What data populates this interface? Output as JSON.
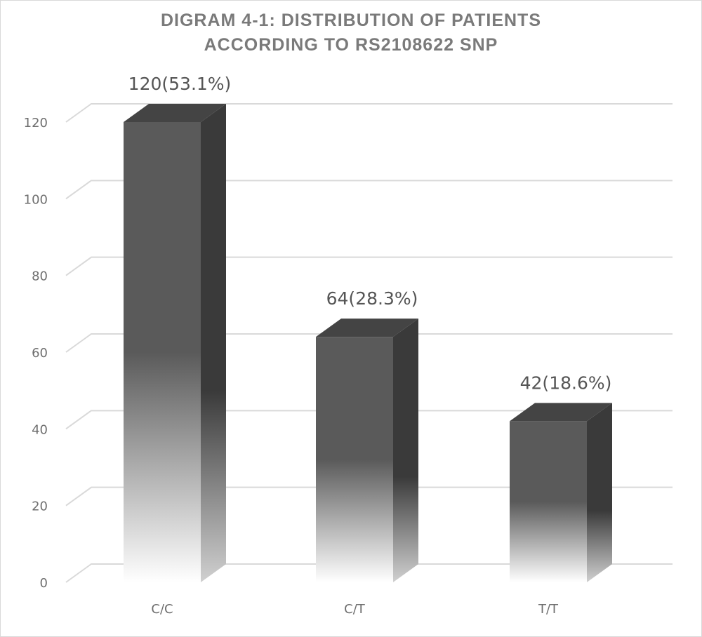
{
  "chart_data": {
    "type": "bar",
    "title_lines": [
      "DIGRAM 4-1: DISTRIBUTION OF PATIENTS",
      "ACCORDING TO RS2108622 SNP"
    ],
    "categories": [
      "C/C",
      "C/T",
      "T/T"
    ],
    "values": [
      120,
      64,
      42
    ],
    "data_labels": [
      "120(53.1%)",
      "64(28.3%)",
      "42(18.6%)"
    ],
    "yticks": [
      0,
      20,
      40,
      60,
      80,
      100,
      120
    ],
    "ylim": [
      0,
      120
    ],
    "grid": true,
    "legend": "none",
    "style": "3d-column",
    "colors": {
      "front_dark": "#5a5a5a",
      "front_light": "#ffffff",
      "side": "#3a3a3a",
      "top": "#444444",
      "grid": "#d9d9d9"
    }
  }
}
